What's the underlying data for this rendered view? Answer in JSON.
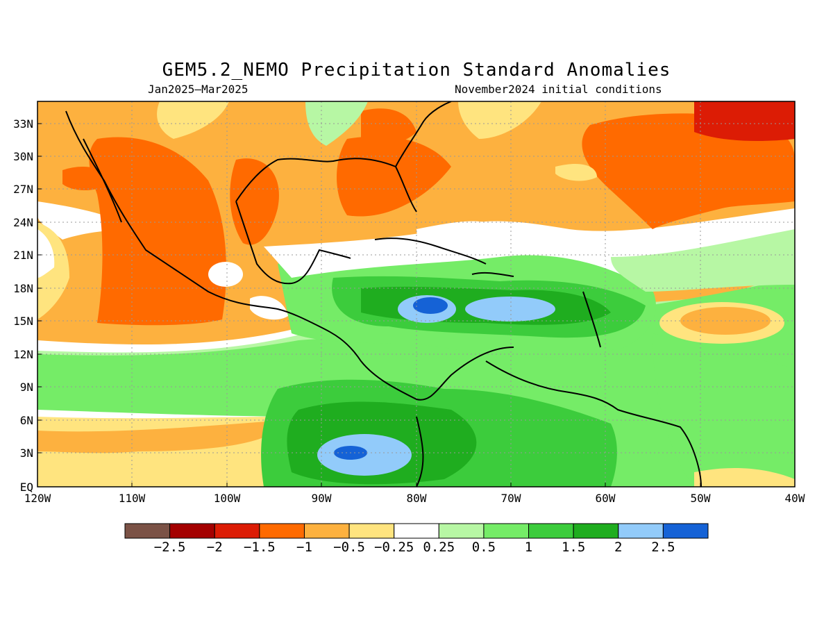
{
  "title": "GEM5.2_NEMO Precipitation Standard Anomalies",
  "period": "Jan2025—Mar2025",
  "initial_conditions": "November2024 initial conditions",
  "map": {
    "lat_labels": [
      "33N",
      "30N",
      "27N",
      "24N",
      "21N",
      "18N",
      "15N",
      "12N",
      "9N",
      "6N",
      "3N",
      "EQ"
    ],
    "lon_labels": [
      "120W",
      "110W",
      "100W",
      "90W",
      "80W",
      "70W",
      "60W",
      "50W",
      "40W"
    ]
  },
  "colorbar": {
    "colors": [
      "#7b5246",
      "#a40000",
      "#dc1c05",
      "#ff6a00",
      "#fdb13f",
      "#ffe47f",
      "#ffffff",
      "#b7f7a4",
      "#75ec67",
      "#3ccc3c",
      "#1fad1f",
      "#92cbfa",
      "#1562d6"
    ],
    "labels": [
      "−2.5",
      "−2",
      "−1.5",
      "−1",
      "−0.5",
      "−0.25",
      "0.25",
      "0.5",
      "1",
      "1.5",
      "2",
      "2.5"
    ]
  }
}
